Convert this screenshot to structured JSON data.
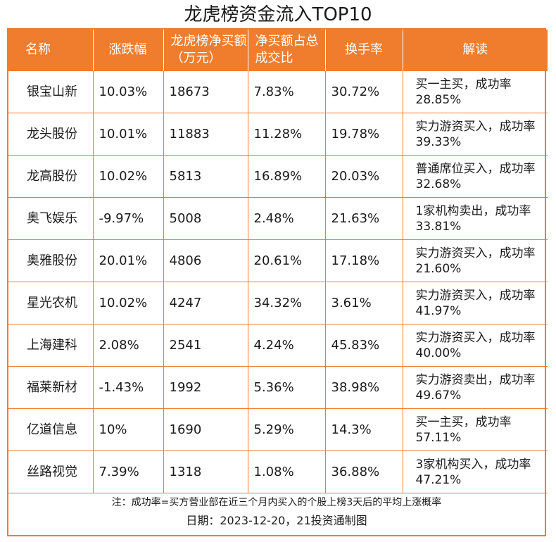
{
  "title": "龙虎榜资金流入TOP10",
  "headers": [
    "名称",
    "涨跌幅",
    "龙虎榜净买额（万元）",
    "净买额占总成交比",
    "换手率",
    "解读"
  ],
  "rows": [
    {
      "name": "银宝山新",
      "change": "10.03%",
      "net_buy": "18673",
      "ratio": "7.83%",
      "turnover": "30.72%",
      "note": "买一主买，成功率28.85%"
    },
    {
      "name": "龙头股份",
      "change": "10.01%",
      "net_buy": "11883",
      "ratio": "11.28%",
      "turnover": "19.78%",
      "note": "实力游资买入，成功率39.33%"
    },
    {
      "name": "龙高股份",
      "change": "10.02%",
      "net_buy": "5813",
      "ratio": "16.89%",
      "turnover": "20.03%",
      "note": "普通席位买入，成功率32.68%"
    },
    {
      "name": "奥飞娱乐",
      "change": "-9.97%",
      "net_buy": "5008",
      "ratio": "2.48%",
      "turnover": "21.63%",
      "note": "1家机构卖出，成功率33.81%"
    },
    {
      "name": "奥雅股份",
      "change": "20.01%",
      "net_buy": "4806",
      "ratio": "20.61%",
      "turnover": "17.18%",
      "note": "实力游资买入，成功率21.60%"
    },
    {
      "name": "星光农机",
      "change": "10.02%",
      "net_buy": "4247",
      "ratio": "34.32%",
      "turnover": "3.61%",
      "note": "实力游资买入，成功率41.97%"
    },
    {
      "name": "上海建科",
      "change": "2.08%",
      "net_buy": "2541",
      "ratio": "4.24%",
      "turnover": "45.83%",
      "note": "实力游资买入，成功率40.00%"
    },
    {
      "name": "福莱新材",
      "change": "-1.43%",
      "net_buy": "1992",
      "ratio": "5.36%",
      "turnover": "38.98%",
      "note": "实力游资卖出，成功率49.67%"
    },
    {
      "name": "亿道信息",
      "change": "10%",
      "net_buy": "1690",
      "ratio": "5.29%",
      "turnover": "14.3%",
      "note": "买一主买，成功率57.11%"
    },
    {
      "name": "丝路视觉",
      "change": "7.39%",
      "net_buy": "1318",
      "ratio": "1.08%",
      "turnover": "36.88%",
      "note": "3家机构买入，成功率47.21%"
    }
  ],
  "footnote": "注：成功率=买方营业部在近三个月内买入的个股上榜3天后的平均上涨概率",
  "date_line": "日期：2023-12-20，21投资通制图",
  "colors": {
    "accent": "#ef7d2d",
    "header_text": "#ffffff"
  }
}
